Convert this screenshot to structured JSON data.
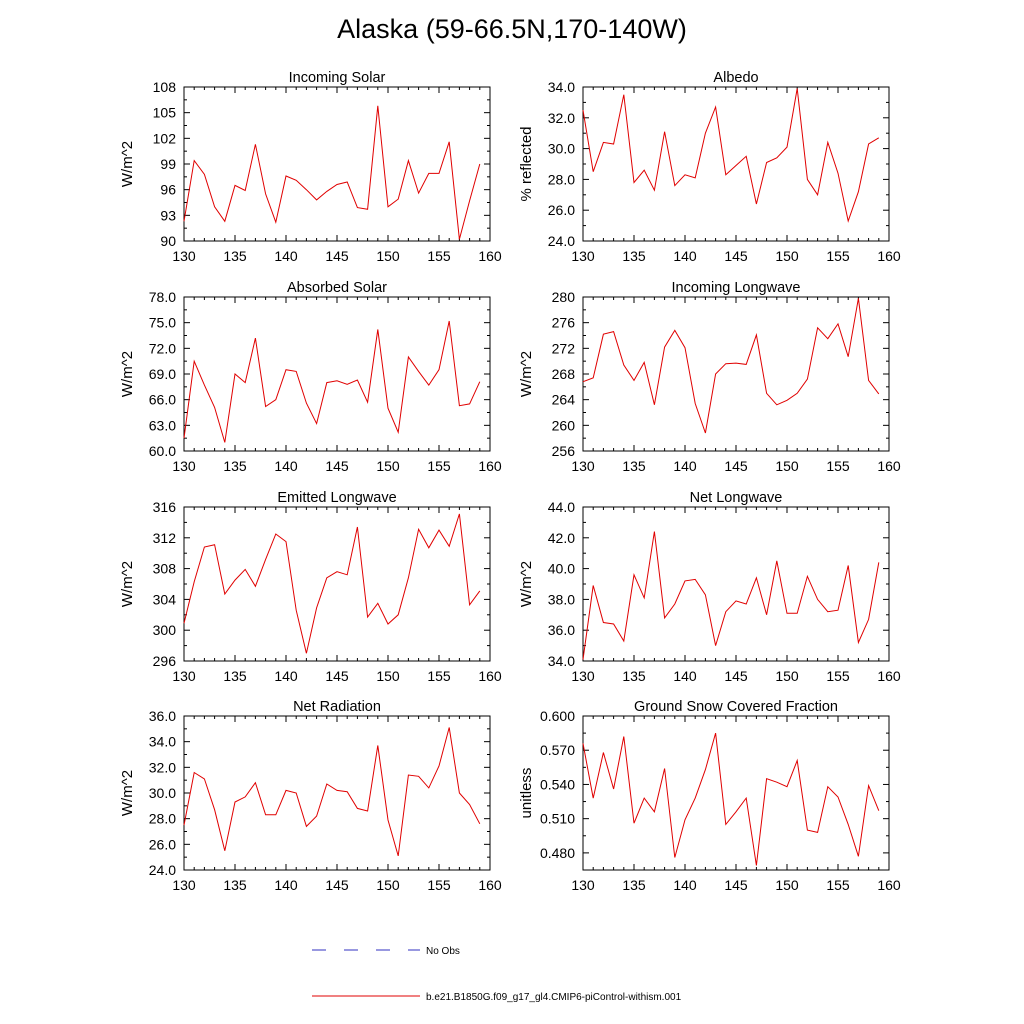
{
  "title": "Alaska (59-66.5N,170-140W)",
  "colors": {
    "model": "#e00000",
    "obs": "#3030c0"
  },
  "legend": {
    "obs_label": "No Obs",
    "model_label": "b.e21.B1850G.f09_g17_gl4.CMIP6-piControl-withism.001"
  },
  "x_ticks": [
    130,
    135,
    140,
    145,
    150,
    155,
    160
  ],
  "chart_data": [
    {
      "type": "line",
      "title": "Incoming Solar",
      "ylabel": "W/m^2",
      "xlim": [
        130,
        160
      ],
      "ylim": [
        90,
        108
      ],
      "yticks": [
        "90",
        "93",
        "96",
        "99",
        "102",
        "105",
        "108"
      ],
      "x": [
        130,
        131,
        132,
        133,
        134,
        135,
        136,
        137,
        138,
        139,
        140,
        141,
        142,
        143,
        144,
        145,
        146,
        147,
        148,
        149,
        150,
        151,
        152,
        153,
        154,
        155,
        156,
        157,
        158,
        159
      ],
      "series": [
        {
          "name": "b.e21.B1850G.f09_g17_gl4.CMIP6-piControl-withism.001",
          "values": [
            92.3,
            99.4,
            97.8,
            94.0,
            92.3,
            96.5,
            95.9,
            101.3,
            95.5,
            92.2,
            97.6,
            97.1,
            96.0,
            94.8,
            95.8,
            96.6,
            96.9,
            93.9,
            93.7,
            105.8,
            94.0,
            94.9,
            99.4,
            95.6,
            97.9,
            97.9,
            101.6,
            90.2,
            94.7,
            99.0
          ]
        }
      ]
    },
    {
      "type": "line",
      "title": "Albedo",
      "ylabel": "% reflected",
      "xlim": [
        130,
        160
      ],
      "ylim": [
        24,
        34
      ],
      "yticks": [
        "24.0",
        "26.0",
        "28.0",
        "30.0",
        "32.0",
        "34.0"
      ],
      "x": [
        130,
        131,
        132,
        133,
        134,
        135,
        136,
        137,
        138,
        139,
        140,
        141,
        142,
        143,
        144,
        145,
        146,
        147,
        148,
        149,
        150,
        151,
        152,
        153,
        154,
        155,
        156,
        157,
        158,
        159
      ],
      "series": [
        {
          "name": "b.e21.B1850G.f09_g17_gl4.CMIP6-piControl-withism.001",
          "values": [
            32.5,
            28.5,
            30.4,
            30.3,
            33.5,
            27.8,
            28.6,
            27.3,
            31.1,
            27.6,
            28.3,
            28.1,
            31.0,
            32.7,
            28.3,
            28.9,
            29.5,
            26.4,
            29.1,
            29.4,
            30.1,
            33.9,
            28.0,
            27.0,
            30.4,
            28.4,
            25.3,
            27.2,
            30.3,
            30.7
          ]
        }
      ]
    },
    {
      "type": "line",
      "title": "Absorbed Solar",
      "ylabel": "W/m^2",
      "xlim": [
        130,
        160
      ],
      "ylim": [
        60,
        78
      ],
      "yticks": [
        "60.0",
        "63.0",
        "66.0",
        "69.0",
        "72.0",
        "75.0",
        "78.0"
      ],
      "x": [
        130,
        131,
        132,
        133,
        134,
        135,
        136,
        137,
        138,
        139,
        140,
        141,
        142,
        143,
        144,
        145,
        146,
        147,
        148,
        149,
        150,
        151,
        152,
        153,
        154,
        155,
        156,
        157,
        158,
        159
      ],
      "series": [
        {
          "name": "b.e21.B1850G.f09_g17_gl4.CMIP6-piControl-withism.001",
          "values": [
            61.5,
            70.5,
            67.7,
            65.1,
            61.0,
            69.0,
            68.0,
            73.2,
            65.2,
            66.0,
            69.5,
            69.3,
            65.6,
            63.2,
            68.0,
            68.2,
            67.8,
            68.3,
            65.7,
            74.2,
            65.0,
            62.2,
            71.0,
            69.3,
            67.7,
            69.5,
            75.2,
            65.3,
            65.5,
            68.1
          ]
        }
      ]
    },
    {
      "type": "line",
      "title": "Incoming Longwave",
      "ylabel": "W/m^2",
      "xlim": [
        130,
        160
      ],
      "ylim": [
        256,
        280
      ],
      "yticks": [
        "256",
        "260",
        "264",
        "268",
        "272",
        "276",
        "280"
      ],
      "x": [
        130,
        131,
        132,
        133,
        134,
        135,
        136,
        137,
        138,
        139,
        140,
        141,
        142,
        143,
        144,
        145,
        146,
        147,
        148,
        149,
        150,
        151,
        152,
        153,
        154,
        155,
        156,
        157,
        158,
        159
      ],
      "series": [
        {
          "name": "b.e21.B1850G.f09_g17_gl4.CMIP6-piControl-withism.001",
          "values": [
            266.8,
            267.4,
            274.2,
            274.6,
            269.4,
            267.0,
            269.8,
            263.2,
            272.2,
            274.8,
            272.1,
            263.4,
            258.8,
            268.0,
            269.6,
            269.7,
            269.5,
            274.1,
            265.0,
            263.2,
            263.9,
            265.0,
            267.2,
            275.2,
            273.5,
            275.8,
            270.7,
            279.8,
            267.0,
            264.9
          ]
        }
      ]
    },
    {
      "type": "line",
      "title": "Emitted Longwave",
      "ylabel": "W/m^2",
      "xlim": [
        130,
        160
      ],
      "ylim": [
        296,
        316
      ],
      "yticks": [
        "296",
        "300",
        "304",
        "308",
        "312",
        "316"
      ],
      "x": [
        130,
        131,
        132,
        133,
        134,
        135,
        136,
        137,
        138,
        139,
        140,
        141,
        142,
        143,
        144,
        145,
        146,
        147,
        148,
        149,
        150,
        151,
        152,
        153,
        154,
        155,
        156,
        157,
        158,
        159
      ],
      "series": [
        {
          "name": "b.e21.B1850G.f09_g17_gl4.CMIP6-piControl-withism.001",
          "values": [
            300.9,
            306.3,
            310.8,
            311.1,
            304.7,
            306.5,
            307.9,
            305.7,
            309.2,
            312.5,
            311.5,
            302.6,
            297.0,
            302.9,
            306.8,
            307.6,
            307.2,
            313.4,
            301.7,
            303.5,
            300.8,
            302.0,
            306.8,
            313.1,
            310.7,
            313.0,
            310.9,
            315.1,
            303.3,
            305.1
          ]
        }
      ]
    },
    {
      "type": "line",
      "title": "Net Longwave",
      "ylabel": "W/m^2",
      "xlim": [
        130,
        160
      ],
      "ylim": [
        34,
        44
      ],
      "yticks": [
        "34.0",
        "36.0",
        "38.0",
        "40.0",
        "42.0",
        "44.0"
      ],
      "x": [
        130,
        131,
        132,
        133,
        134,
        135,
        136,
        137,
        138,
        139,
        140,
        141,
        142,
        143,
        144,
        145,
        146,
        147,
        148,
        149,
        150,
        151,
        152,
        153,
        154,
        155,
        156,
        157,
        158,
        159
      ],
      "series": [
        {
          "name": "b.e21.B1850G.f09_g17_gl4.CMIP6-piControl-withism.001",
          "values": [
            34.1,
            38.9,
            36.5,
            36.4,
            35.3,
            39.6,
            38.1,
            42.4,
            36.8,
            37.7,
            39.2,
            39.3,
            38.3,
            35.0,
            37.2,
            37.9,
            37.7,
            39.4,
            37.0,
            40.5,
            37.1,
            37.1,
            39.5,
            38.0,
            37.2,
            37.3,
            40.2,
            35.2,
            36.7,
            40.4
          ]
        }
      ]
    },
    {
      "type": "line",
      "title": "Net Radiation",
      "ylabel": "W/m^2",
      "xlim": [
        130,
        160
      ],
      "ylim": [
        24,
        36
      ],
      "yticks": [
        "24.0",
        "26.0",
        "28.0",
        "30.0",
        "32.0",
        "34.0",
        "36.0"
      ],
      "x": [
        130,
        131,
        132,
        133,
        134,
        135,
        136,
        137,
        138,
        139,
        140,
        141,
        142,
        143,
        144,
        145,
        146,
        147,
        148,
        149,
        150,
        151,
        152,
        153,
        154,
        155,
        156,
        157,
        158,
        159
      ],
      "series": [
        {
          "name": "b.e21.B1850G.f09_g17_gl4.CMIP6-piControl-withism.001",
          "values": [
            27.5,
            31.6,
            31.1,
            28.7,
            25.5,
            29.3,
            29.7,
            30.8,
            28.3,
            28.3,
            30.2,
            30.0,
            27.4,
            28.2,
            30.7,
            30.2,
            30.1,
            28.8,
            28.6,
            33.7,
            27.9,
            25.1,
            31.4,
            31.3,
            30.4,
            32.1,
            35.1,
            30.0,
            29.1,
            27.6
          ]
        }
      ]
    },
    {
      "type": "line",
      "title": "Ground Snow Covered Fraction",
      "ylabel": "unitless",
      "xlim": [
        130,
        160
      ],
      "ylim": [
        0.465,
        0.6
      ],
      "yticks": [
        "0.480",
        "0.510",
        "0.540",
        "0.570",
        "0.600"
      ],
      "x": [
        130,
        131,
        132,
        133,
        134,
        135,
        136,
        137,
        138,
        139,
        140,
        141,
        142,
        143,
        144,
        145,
        146,
        147,
        148,
        149,
        150,
        151,
        152,
        153,
        154,
        155,
        156,
        157,
        158,
        159
      ],
      "series": [
        {
          "name": "b.e21.B1850G.f09_g17_gl4.CMIP6-piControl-withism.001",
          "values": [
            0.576,
            0.528,
            0.568,
            0.536,
            0.582,
            0.506,
            0.528,
            0.516,
            0.554,
            0.476,
            0.509,
            0.528,
            0.553,
            0.585,
            0.505,
            0.516,
            0.528,
            0.469,
            0.545,
            0.542,
            0.538,
            0.561,
            0.5,
            0.498,
            0.538,
            0.529,
            0.505,
            0.477,
            0.539,
            0.517
          ]
        }
      ]
    }
  ]
}
